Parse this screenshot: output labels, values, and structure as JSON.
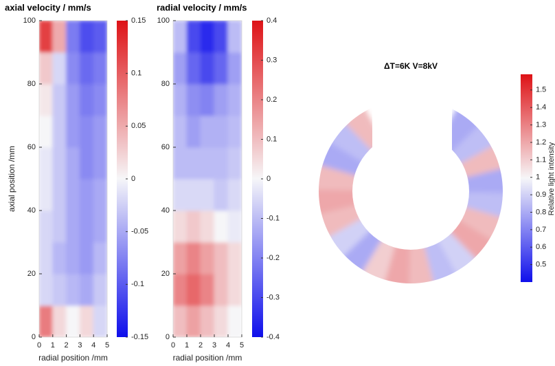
{
  "chart_data": [
    {
      "type": "heatmap",
      "title": "axial velocity / mm/s",
      "xlabel": "radial position /mm",
      "ylabel": "axial position /mm",
      "x": [
        0.5,
        1.5,
        2.5,
        3.5,
        4.5
      ],
      "y": [
        5,
        15,
        25,
        35,
        45,
        55,
        65,
        75,
        85,
        95
      ],
      "values": [
        [
          0.08,
          0.02,
          0.0,
          0.02,
          -0.02
        ],
        [
          -0.02,
          -0.03,
          -0.04,
          -0.05,
          -0.03
        ],
        [
          -0.02,
          -0.04,
          -0.05,
          -0.06,
          -0.04
        ],
        [
          -0.02,
          -0.03,
          -0.05,
          -0.06,
          -0.05
        ],
        [
          -0.01,
          -0.03,
          -0.05,
          -0.06,
          -0.05
        ],
        [
          -0.01,
          -0.03,
          -0.05,
          -0.07,
          -0.06
        ],
        [
          0.0,
          -0.03,
          -0.06,
          -0.07,
          -0.06
        ],
        [
          0.01,
          -0.03,
          -0.06,
          -0.08,
          -0.07
        ],
        [
          0.03,
          -0.02,
          -0.07,
          -0.09,
          -0.08
        ],
        [
          0.12,
          0.05,
          -0.08,
          -0.11,
          -0.1
        ]
      ],
      "xlim": [
        0,
        5
      ],
      "ylim": [
        0,
        100
      ],
      "xticks": [
        0,
        1,
        2,
        3,
        4,
        5
      ],
      "yticks": [
        0,
        20,
        40,
        60,
        80,
        100
      ],
      "clim": [
        -0.15,
        0.15
      ],
      "cticks": [
        -0.15,
        -0.1,
        -0.05,
        0,
        0.05,
        0.1,
        0.15
      ]
    },
    {
      "type": "heatmap",
      "title": "radial velocity / mm/s",
      "xlabel": "radial position /mm",
      "x": [
        0.5,
        1.5,
        2.5,
        3.5,
        4.5
      ],
      "y": [
        5,
        15,
        25,
        35,
        45,
        55,
        65,
        75,
        85,
        95
      ],
      "values": [
        [
          0.1,
          0.15,
          0.1,
          0.05,
          0.0
        ],
        [
          0.2,
          0.25,
          0.2,
          0.1,
          0.05
        ],
        [
          0.15,
          0.2,
          0.15,
          0.1,
          0.05
        ],
        [
          0.05,
          0.08,
          0.05,
          0.0,
          -0.02
        ],
        [
          -0.05,
          -0.05,
          -0.05,
          -0.08,
          -0.05
        ],
        [
          -0.1,
          -0.1,
          -0.1,
          -0.1,
          -0.08
        ],
        [
          -0.1,
          -0.15,
          -0.12,
          -0.12,
          -0.1
        ],
        [
          -0.12,
          -0.18,
          -0.2,
          -0.15,
          -0.12
        ],
        [
          -0.15,
          -0.25,
          -0.3,
          -0.25,
          -0.15
        ],
        [
          -0.1,
          -0.3,
          -0.35,
          -0.3,
          -0.1
        ]
      ],
      "xlim": [
        0,
        5
      ],
      "ylim": [
        0,
        100
      ],
      "xticks": [
        0,
        1,
        2,
        3,
        4,
        5
      ],
      "yticks": [
        0,
        20,
        40,
        60,
        80,
        100
      ],
      "clim": [
        -0.4,
        0.4
      ],
      "cticks": [
        -0.4,
        -0.3,
        -0.2,
        -0.1,
        0,
        0.1,
        0.2,
        0.3,
        0.4
      ]
    },
    {
      "type": "ring",
      "title": "ΔT=6K V=8kV",
      "colorbar_label": "Relative light intensity",
      "angles": [
        127.5,
        142.5,
        157.5,
        172.5,
        187.5,
        202.5,
        217.5,
        232.5,
        247.5,
        262.5,
        277.5,
        292.5,
        307.5,
        322.5,
        337.5,
        352.5,
        367.5,
        382.5,
        397.5,
        412.5
      ],
      "values": [
        1.15,
        0.85,
        0.8,
        1.15,
        1.2,
        1.15,
        0.9,
        0.8,
        1.1,
        1.2,
        1.15,
        0.85,
        0.9,
        1.2,
        1.15,
        0.85,
        0.8,
        1.15,
        0.85,
        0.8
      ],
      "clim": [
        0.4,
        1.59
      ],
      "cticks": [
        0.5,
        0.6,
        0.7,
        0.8,
        0.9,
        1,
        1.1,
        1.2,
        1.3,
        1.4,
        1.5
      ]
    }
  ]
}
